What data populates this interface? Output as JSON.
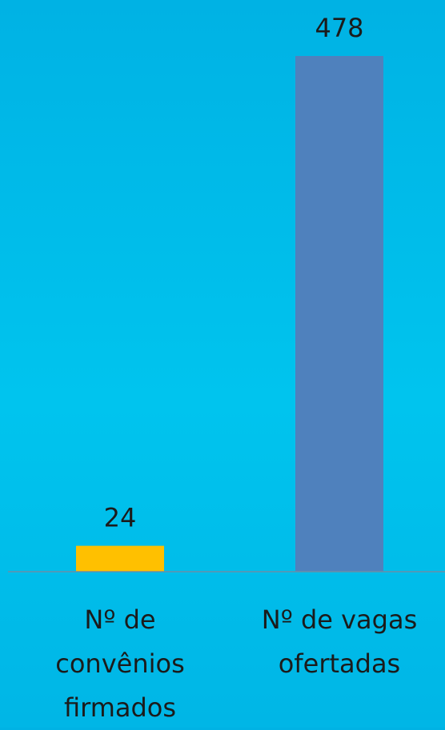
{
  "chart_data": {
    "type": "bar",
    "categories": [
      "Nº de convênios firmados",
      "Nº de vagas ofertadas"
    ],
    "values": [
      24,
      478
    ],
    "colors": [
      "#ffc000",
      "#4f81bd"
    ],
    "ylim": [
      0,
      478
    ]
  }
}
